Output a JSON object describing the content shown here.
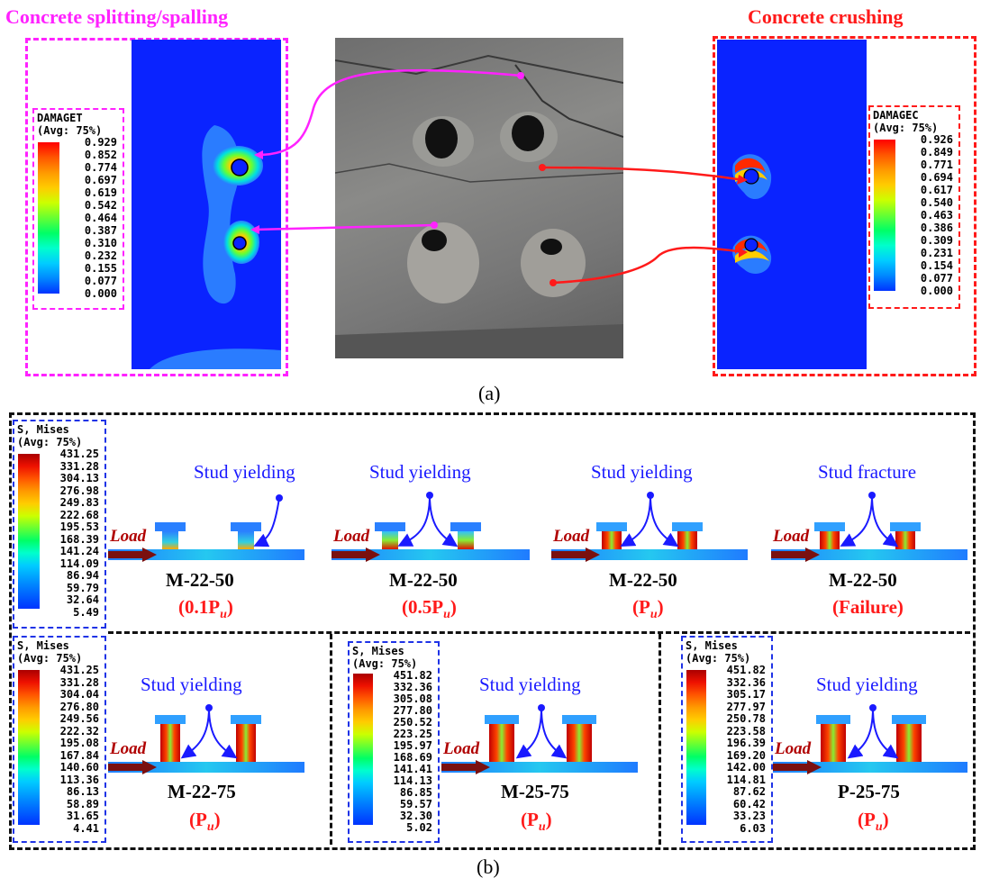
{
  "panel_a": {
    "left_title": "Concrete splitting/spalling",
    "right_title": "Concrete crushing",
    "caption": "(a)",
    "legend_t": {
      "title1": "DAMAGET",
      "title2": "(Avg: 75%)",
      "values": [
        "0.929",
        "0.852",
        "0.774",
        "0.697",
        "0.619",
        "0.542",
        "0.464",
        "0.387",
        "0.310",
        "0.232",
        "0.155",
        "0.077",
        "0.000"
      ]
    },
    "legend_c": {
      "title1": "DAMAGEC",
      "title2": "(Avg: 75%)",
      "values": [
        "0.926",
        "0.849",
        "0.771",
        "0.694",
        "0.617",
        "0.540",
        "0.463",
        "0.386",
        "0.309",
        "0.231",
        "0.154",
        "0.077",
        "0.000"
      ]
    },
    "colors": {
      "magenta": "#ff22ff",
      "red": "#ff1a1a",
      "model_blue": "#0a23ff"
    }
  },
  "panel_b": {
    "caption": "(b)",
    "legend_1": {
      "title1": "S, Mises",
      "title2": "(Avg: 75%)",
      "values": [
        "431.25",
        "331.28",
        "304.13",
        "276.98",
        "249.83",
        "222.68",
        "195.53",
        "168.39",
        "141.24",
        "114.09",
        "86.94",
        "59.79",
        "32.64",
        "5.49"
      ]
    },
    "legend_2": {
      "title1": "S, Mises",
      "title2": "(Avg: 75%)",
      "values": [
        "431.25",
        "331.28",
        "304.04",
        "276.80",
        "249.56",
        "222.32",
        "195.08",
        "167.84",
        "140.60",
        "113.36",
        "86.13",
        "58.89",
        "31.65",
        "4.41"
      ]
    },
    "legend_3": {
      "title1": "S, Mises",
      "title2": "(Avg: 75%)",
      "values": [
        "451.82",
        "332.36",
        "305.08",
        "277.80",
        "250.52",
        "223.25",
        "195.97",
        "168.69",
        "141.41",
        "114.13",
        "86.85",
        "59.57",
        "32.30",
        "5.02"
      ]
    },
    "legend_4": {
      "title1": "S, Mises",
      "title2": "(Avg: 75%)",
      "values": [
        "451.82",
        "332.36",
        "305.17",
        "277.97",
        "250.78",
        "223.58",
        "196.39",
        "169.20",
        "142.00",
        "114.81",
        "87.62",
        "60.42",
        "33.23",
        "6.03"
      ]
    },
    "load_label": "Load",
    "top_row": [
      {
        "annot": "Stud yielding",
        "model": "M-22-50",
        "stage": "(0.1P",
        "stage_sub": "u",
        "stage_end": ")"
      },
      {
        "annot": "Stud yielding",
        "model": "M-22-50",
        "stage": "(0.5P",
        "stage_sub": "u",
        "stage_end": ")"
      },
      {
        "annot": "Stud yielding",
        "model": "M-22-50",
        "stage": "(P",
        "stage_sub": "u",
        "stage_end": ")"
      },
      {
        "annot": "Stud fracture",
        "model": "M-22-50",
        "stage": "(Failure)",
        "stage_sub": "",
        "stage_end": ""
      }
    ],
    "bottom_row": [
      {
        "annot": "Stud yielding",
        "model": "M-22-75",
        "stage": "(P",
        "stage_sub": "u",
        "stage_end": ")"
      },
      {
        "annot": "Stud yielding",
        "model": "M-25-75",
        "stage": "(P",
        "stage_sub": "u",
        "stage_end": ")"
      },
      {
        "annot": "Stud yielding",
        "model": "P-25-75",
        "stage": "(P",
        "stage_sub": "u",
        "stage_end": ")"
      }
    ]
  }
}
